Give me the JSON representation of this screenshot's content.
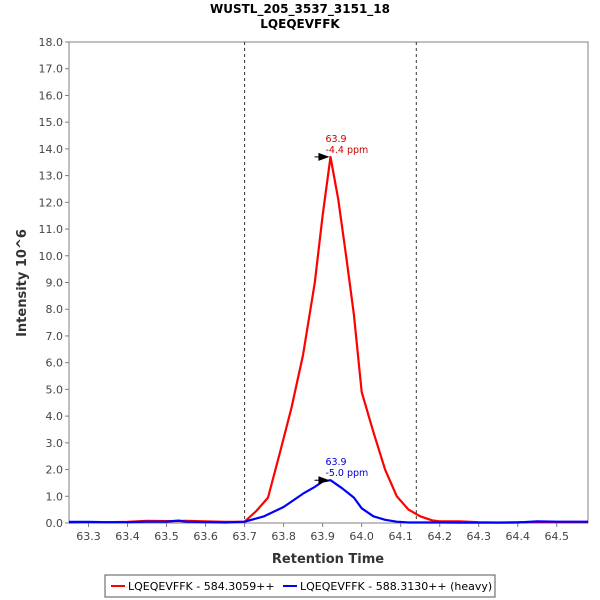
{
  "chart_data": {
    "type": "line",
    "title": "WUSTL_205_3537_3151_18",
    "subtitle": "LQEQEVFFK",
    "xlabel": "Retention Time",
    "ylabel": "Intensity 10^6",
    "xlim": [
      63.25,
      64.58
    ],
    "ylim": [
      0,
      18
    ],
    "x_ticks": [
      "63.3",
      "63.4",
      "63.5",
      "63.6",
      "63.7",
      "63.8",
      "63.9",
      "64.0",
      "64.1",
      "64.2",
      "64.3",
      "64.4",
      "64.5"
    ],
    "y_ticks": [
      "0.0",
      "1.0",
      "2.0",
      "3.0",
      "4.0",
      "5.0",
      "6.0",
      "7.0",
      "8.0",
      "9.0",
      "10.0",
      "11.0",
      "12.0",
      "13.0",
      "14.0",
      "15.0",
      "16.0",
      "17.0",
      "18.0"
    ],
    "integration_bounds": [
      63.7,
      64.14
    ],
    "grid": false,
    "legend_position": "bottom",
    "series": [
      {
        "name": "LQEQEVFFK - 584.3059++",
        "color": "#ff0000",
        "x": [
          63.25,
          63.3,
          63.35,
          63.4,
          63.45,
          63.5,
          63.55,
          63.6,
          63.65,
          63.7,
          63.73,
          63.76,
          63.79,
          63.82,
          63.85,
          63.88,
          63.9,
          63.92,
          63.94,
          63.96,
          63.98,
          64.0,
          64.03,
          64.06,
          64.09,
          64.12,
          64.15,
          64.18,
          64.2,
          64.25,
          64.3,
          64.35,
          64.4,
          64.45,
          64.5,
          64.58
        ],
        "y": [
          0.02,
          0.03,
          0.03,
          0.04,
          0.08,
          0.07,
          0.08,
          0.06,
          0.04,
          0.05,
          0.45,
          0.95,
          2.6,
          4.3,
          6.3,
          9.0,
          11.5,
          13.7,
          12.1,
          10.0,
          7.8,
          4.9,
          3.4,
          2.0,
          1.0,
          0.5,
          0.25,
          0.1,
          0.06,
          0.06,
          0.03,
          0.02,
          0.03,
          0.03,
          0.03,
          0.03
        ]
      },
      {
        "name": "LQEQEVFFK - 588.3130++ (heavy)",
        "color": "#0000ff",
        "x": [
          63.25,
          63.3,
          63.35,
          63.4,
          63.45,
          63.5,
          63.53,
          63.55,
          63.6,
          63.65,
          63.7,
          63.75,
          63.8,
          63.85,
          63.88,
          63.9,
          63.92,
          63.95,
          63.98,
          64.0,
          64.03,
          64.06,
          64.09,
          64.12,
          64.15,
          64.2,
          64.25,
          64.3,
          64.35,
          64.4,
          64.45,
          64.5,
          64.58
        ],
        "y": [
          0.04,
          0.04,
          0.03,
          0.03,
          0.05,
          0.05,
          0.09,
          0.05,
          0.03,
          0.02,
          0.05,
          0.25,
          0.6,
          1.1,
          1.35,
          1.55,
          1.6,
          1.3,
          0.95,
          0.55,
          0.25,
          0.12,
          0.05,
          0.02,
          0.02,
          0.02,
          0.01,
          0.01,
          0.01,
          0.02,
          0.06,
          0.05,
          0.05
        ]
      }
    ],
    "annotations": [
      {
        "series": 0,
        "x": 63.92,
        "y": 13.7,
        "line1": "63.9",
        "line2": "-4.4 ppm",
        "color": "#cc0000"
      },
      {
        "series": 1,
        "x": 63.92,
        "y": 1.6,
        "line1": "63.9",
        "line2": "-5.0 ppm",
        "color": "#0000cc"
      }
    ]
  }
}
